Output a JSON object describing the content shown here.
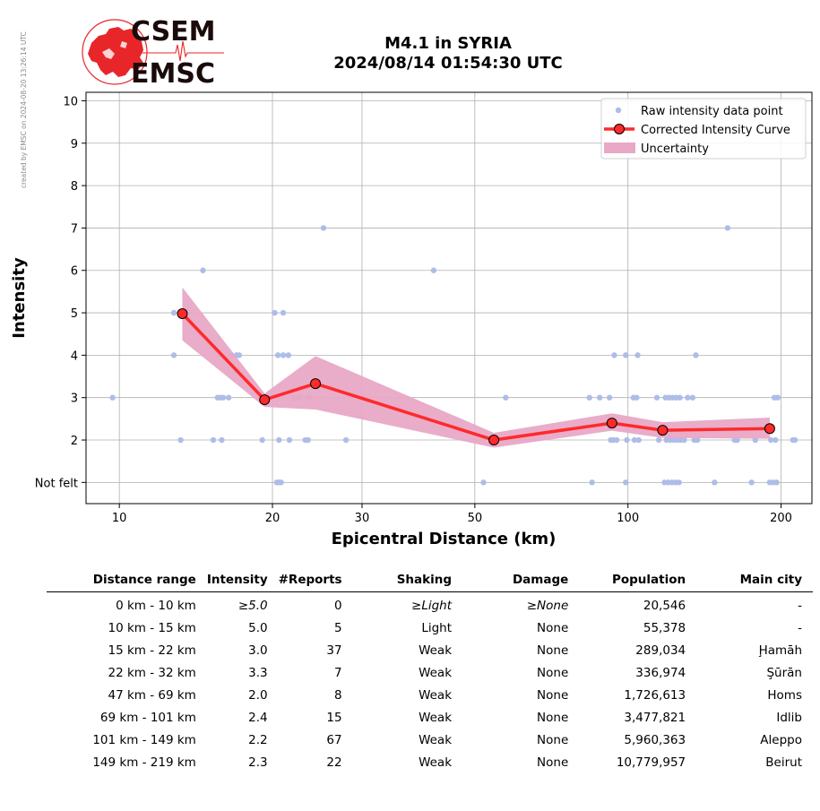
{
  "side_note": "created by EMSC on 2024-08-20 13:26:14 UTC",
  "logo": {
    "line1": "CSEM",
    "line2": "EMSC",
    "color_red": "#e8262a",
    "color_dark": "#1a0a0a"
  },
  "title_line1": "M4.1 in SYRIA",
  "title_line2": "2024/08/14 01:54:30 UTC",
  "chart_data": {
    "type": "scatter",
    "xlabel": "Epicentral Distance (km)",
    "ylabel": "Intensity",
    "x_scale": "log",
    "xlim": [
      8.6,
      230
    ],
    "ylim": [
      0.5,
      10.2
    ],
    "x_ticks": [
      10,
      20,
      30,
      50,
      100,
      200
    ],
    "y_ticks": [
      {
        "value": 1,
        "label": "Not felt"
      },
      {
        "value": 2,
        "label": "2"
      },
      {
        "value": 3,
        "label": "3"
      },
      {
        "value": 4,
        "label": "4"
      },
      {
        "value": 5,
        "label": "5"
      },
      {
        "value": 6,
        "label": "6"
      },
      {
        "value": 7,
        "label": "7"
      },
      {
        "value": 8,
        "label": "8"
      },
      {
        "value": 9,
        "label": "9"
      },
      {
        "value": 10,
        "label": "10"
      }
    ],
    "grid": true,
    "legend_position": "top-right",
    "legend": [
      {
        "label": "Raw intensity data point",
        "kind": "point"
      },
      {
        "label": "Corrected Intensity Curve",
        "kind": "line"
      },
      {
        "label": "Uncertainty",
        "kind": "band"
      }
    ],
    "colors": {
      "raw": "#aebde8",
      "curve": "#ff2a2a",
      "band": "#e8a8c6",
      "marker_edge": "#000000"
    },
    "raw_points": [
      [
        9.7,
        3
      ],
      [
        12.8,
        5
      ],
      [
        12.8,
        4
      ],
      [
        13.2,
        2
      ],
      [
        14.6,
        6
      ],
      [
        15.3,
        2
      ],
      [
        15.6,
        3
      ],
      [
        15.8,
        3
      ],
      [
        15.9,
        2
      ],
      [
        16.0,
        3
      ],
      [
        16.4,
        3
      ],
      [
        16.6,
        4
      ],
      [
        17.0,
        4
      ],
      [
        17.2,
        4
      ],
      [
        19.1,
        2
      ],
      [
        19.5,
        3
      ],
      [
        20.2,
        5
      ],
      [
        20.5,
        4
      ],
      [
        20.6,
        2
      ],
      [
        20.4,
        1
      ],
      [
        20.6,
        1
      ],
      [
        20.8,
        1
      ],
      [
        21.0,
        5
      ],
      [
        21.0,
        4
      ],
      [
        21.5,
        4
      ],
      [
        21.6,
        2
      ],
      [
        22.0,
        3
      ],
      [
        22.5,
        3
      ],
      [
        23.2,
        2
      ],
      [
        23.5,
        2
      ],
      [
        23.6,
        3
      ],
      [
        25.2,
        7
      ],
      [
        27.9,
        2
      ],
      [
        41.5,
        6
      ],
      [
        52.0,
        1
      ],
      [
        54.5,
        2
      ],
      [
        57.5,
        3
      ],
      [
        84.0,
        3
      ],
      [
        85.0,
        1
      ],
      [
        88.0,
        3
      ],
      [
        92.0,
        3
      ],
      [
        92.5,
        2
      ],
      [
        93.5,
        2
      ],
      [
        94.0,
        4
      ],
      [
        95.0,
        2
      ],
      [
        99.0,
        1
      ],
      [
        99.0,
        4
      ],
      [
        99.5,
        2
      ],
      [
        102.5,
        3
      ],
      [
        103.0,
        2
      ],
      [
        104.0,
        3
      ],
      [
        104.5,
        4
      ],
      [
        105.0,
        2
      ],
      [
        114.0,
        3
      ],
      [
        115.0,
        2
      ],
      [
        118.0,
        1
      ],
      [
        118.5,
        3
      ],
      [
        119.0,
        2
      ],
      [
        120.0,
        1
      ],
      [
        120.5,
        3
      ],
      [
        121.0,
        2
      ],
      [
        122.0,
        1
      ],
      [
        122.5,
        3
      ],
      [
        123.0,
        2
      ],
      [
        124.0,
        1
      ],
      [
        124.5,
        3
      ],
      [
        125.0,
        2
      ],
      [
        126.0,
        1
      ],
      [
        126.5,
        3
      ],
      [
        127.0,
        2
      ],
      [
        129.0,
        2
      ],
      [
        131.0,
        3
      ],
      [
        134.0,
        3
      ],
      [
        135.0,
        2
      ],
      [
        136.0,
        4
      ],
      [
        137.0,
        2
      ],
      [
        148.0,
        1
      ],
      [
        157.0,
        7
      ],
      [
        162.0,
        2
      ],
      [
        164.0,
        2
      ],
      [
        175.0,
        1
      ],
      [
        178.0,
        2
      ],
      [
        190.0,
        1
      ],
      [
        191.0,
        2
      ],
      [
        193.0,
        1
      ],
      [
        194.0,
        3
      ],
      [
        195.0,
        2
      ],
      [
        196.0,
        1
      ],
      [
        197.0,
        3
      ],
      [
        211.0,
        2
      ],
      [
        213.0,
        2
      ]
    ],
    "curve": [
      {
        "x": 13.3,
        "y": 4.98,
        "lo": 4.35,
        "hi": 5.6
      },
      {
        "x": 19.3,
        "y": 2.95,
        "lo": 2.78,
        "hi": 3.1
      },
      {
        "x": 24.3,
        "y": 3.33,
        "lo": 2.72,
        "hi": 3.98
      },
      {
        "x": 54.5,
        "y": 2.0,
        "lo": 1.82,
        "hi": 2.17
      },
      {
        "x": 93.0,
        "y": 2.4,
        "lo": 2.22,
        "hi": 2.63
      },
      {
        "x": 117.0,
        "y": 2.23,
        "lo": 2.05,
        "hi": 2.42
      },
      {
        "x": 190.0,
        "y": 2.27,
        "lo": 2.03,
        "hi": 2.53
      }
    ]
  },
  "table": {
    "headers": [
      "Distance range",
      "Intensity",
      "#Reports",
      "Shaking",
      "Damage",
      "Population",
      "Main city"
    ],
    "rows": [
      {
        "range": "0 km -   10 km",
        "intensity": "≥5.0",
        "reports": "0",
        "shaking": "≥Light",
        "damage": "≥None",
        "population": "20,546",
        "city": "-",
        "italic": true
      },
      {
        "range": "10 km -   15 km",
        "intensity": "5.0",
        "reports": "5",
        "shaking": "Light",
        "damage": "None",
        "population": "55,378",
        "city": "-",
        "italic": false
      },
      {
        "range": "15 km -   22 km",
        "intensity": "3.0",
        "reports": "37",
        "shaking": "Weak",
        "damage": "None",
        "population": "289,034",
        "city": "Ḩamāh",
        "italic": false
      },
      {
        "range": "22 km -   32 km",
        "intensity": "3.3",
        "reports": "7",
        "shaking": "Weak",
        "damage": "None",
        "population": "336,974",
        "city": "Şūrān",
        "italic": false
      },
      {
        "range": "47 km -   69 km",
        "intensity": "2.0",
        "reports": "8",
        "shaking": "Weak",
        "damage": "None",
        "population": "1,726,613",
        "city": "Homs",
        "italic": false
      },
      {
        "range": "69 km -  101 km",
        "intensity": "2.4",
        "reports": "15",
        "shaking": "Weak",
        "damage": "None",
        "population": "3,477,821",
        "city": "Idlib",
        "italic": false
      },
      {
        "range": "101 km -  149 km",
        "intensity": "2.2",
        "reports": "67",
        "shaking": "Weak",
        "damage": "None",
        "population": "5,960,363",
        "city": "Aleppo",
        "italic": false
      },
      {
        "range": "149 km -  219 km",
        "intensity": "2.3",
        "reports": "22",
        "shaking": "Weak",
        "damage": "None",
        "population": "10,779,957",
        "city": "Beirut",
        "italic": false
      }
    ]
  }
}
